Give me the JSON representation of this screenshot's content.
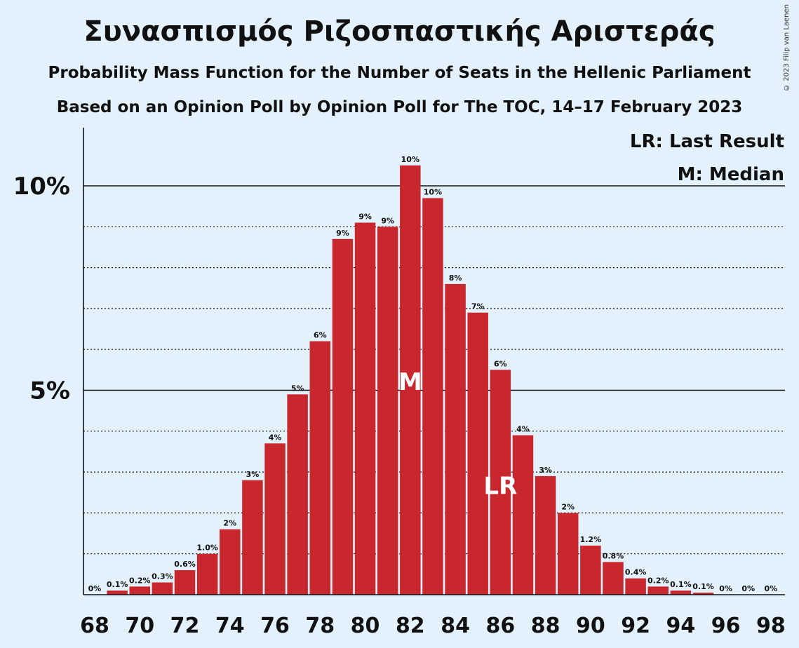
{
  "title": "Συνασπισμός Ριζοσπαστικής Αριστεράς",
  "subtitle1": "Probability Mass Function for the Number of Seats in the Hellenic Parliament",
  "subtitle2": "Based on an Opinion Poll by Opinion Poll for The TOC, 14–17 February 2023",
  "copyright": "© 2023 Filip van Laenen",
  "colors": {
    "bar": "#c8282d",
    "background": "#e3f1fc"
  },
  "chart_data": {
    "type": "bar",
    "x": [
      68,
      69,
      70,
      71,
      72,
      73,
      74,
      75,
      76,
      77,
      78,
      79,
      80,
      81,
      82,
      83,
      84,
      85,
      86,
      87,
      88,
      89,
      90,
      91,
      92,
      93,
      94,
      95,
      96,
      97,
      98
    ],
    "values": [
      0,
      0.1,
      0.2,
      0.3,
      0.6,
      1.0,
      1.6,
      2.8,
      3.7,
      4.9,
      6.2,
      8.7,
      9.1,
      9.0,
      10.5,
      9.7,
      7.6,
      6.9,
      5.5,
      3.9,
      2.9,
      2.0,
      1.2,
      0.8,
      0.4,
      0.2,
      0.1,
      0.05,
      0,
      0,
      0
    ],
    "data_labels": [
      "0%",
      "0.1%",
      "0.2%",
      "0.3%",
      "0.6%",
      "1.0%",
      "2%",
      "3%",
      "4%",
      "5%",
      "6%",
      "9%",
      "9%",
      "9%",
      "10%",
      "10%",
      "8%",
      "7%",
      "6%",
      "4%",
      "3%",
      "2%",
      "1.2%",
      "0.8%",
      "0.4%",
      "0.2%",
      "0.1%",
      "0.1%",
      "0%",
      "0%",
      "0%"
    ],
    "x_tick_labels": [
      "68",
      "70",
      "72",
      "74",
      "76",
      "78",
      "80",
      "82",
      "84",
      "86",
      "88",
      "90",
      "92",
      "94",
      "96",
      "98"
    ],
    "y_tick_labels": [
      "5%",
      "10%"
    ],
    "ylim": [
      0,
      11
    ],
    "median_seat": 82,
    "median_marker": "M",
    "last_result_seat": 86,
    "last_result_marker": "LR",
    "legend": [
      "LR: Last Result",
      "M: Median"
    ],
    "legend_position": "top-right",
    "grid": "dotted lines every 1%, solid at 5% and 10%"
  }
}
